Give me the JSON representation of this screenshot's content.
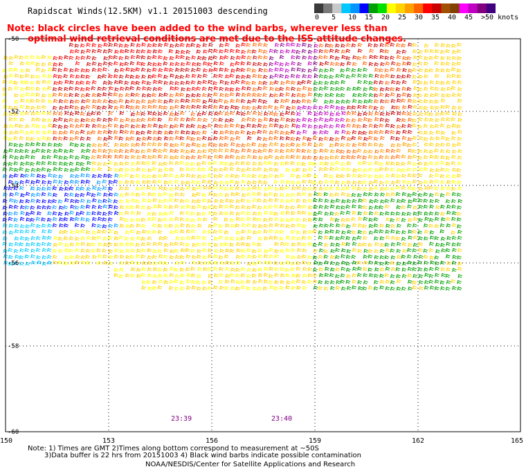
{
  "title": "Rapidscat Winds(12.5KM) v1.1 20151003 descending",
  "note": {
    "line1": "Note: black circles have been added to the wind barbs, wherever less than",
    "line2": "optimal wind retrieval conditions are met due to the ISS attitude changes."
  },
  "legend": {
    "ticks": [
      "0",
      "5",
      "10",
      "15",
      "20",
      "25",
      "30",
      "35",
      "40",
      "45",
      ">50 knots"
    ],
    "colors": [
      "#3a3a3a",
      "#7a7a7a",
      "#c8c8c8",
      "#00c8ff",
      "#0096ff",
      "#0000ff",
      "#00a000",
      "#00e000",
      "#ffff00",
      "#ffd200",
      "#ffa000",
      "#ff6400",
      "#ff0000",
      "#c80000",
      "#a05000",
      "#804000",
      "#ff00ff",
      "#c000c0",
      "#800080",
      "#400080"
    ]
  },
  "axes": {
    "lat_labels": [
      "-50",
      "-52",
      "-54",
      "-56",
      "-58",
      "-60"
    ],
    "lon_labels": [
      "150",
      "153",
      "156",
      "159",
      "162",
      "165"
    ]
  },
  "times": [
    "23:39",
    "23:40"
  ],
  "footer": {
    "line1": "Note: 1) Times are GMT 2)Times along bottom correspond to measurement at ~50S",
    "line2": "3)Data buffer is 22 hrs from 20151003 4) Black wind barbs indicate possible contamination",
    "line3": "NOAA/NESDIS/Center for Satellite Applications and Research"
  },
  "colors": {
    "grid": "#000000",
    "note": "#ff0000",
    "time": "#800080"
  }
}
